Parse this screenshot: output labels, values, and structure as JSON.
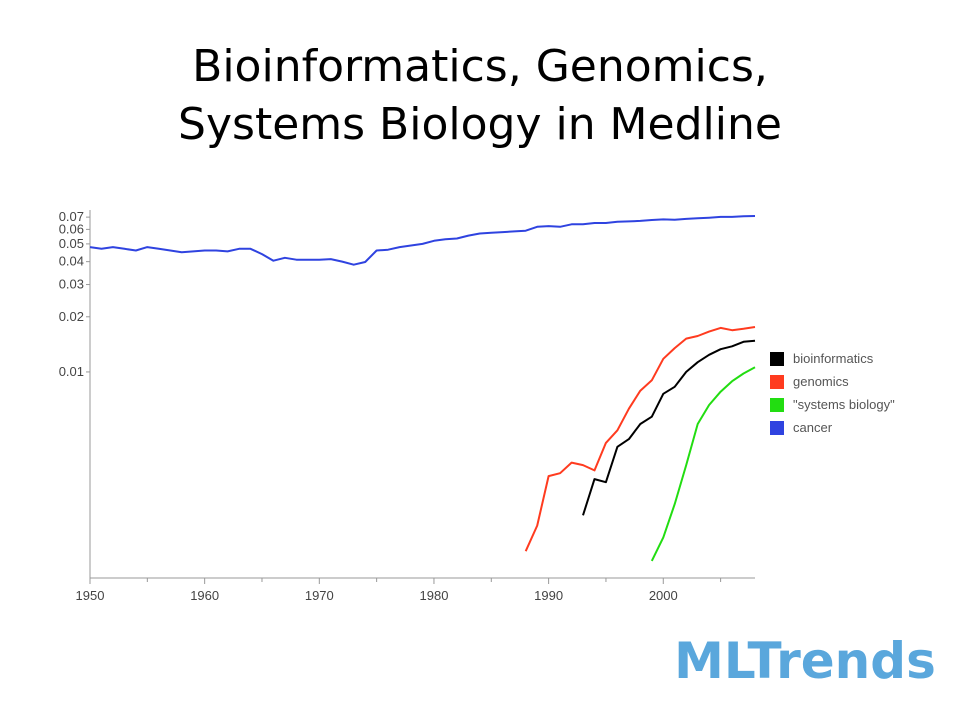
{
  "slide": {
    "title_line1": "Bioinformatics, Genomics,",
    "title_line2": "Systems Biology in Medline"
  },
  "logo": {
    "text": "MLTrends",
    "color": "#5aa7dc"
  },
  "chart_data": {
    "type": "line",
    "title": "",
    "xlabel": "",
    "ylabel": "",
    "xlim": [
      1950,
      2008
    ],
    "y_ticks": [
      0.01,
      0.02,
      0.03,
      0.04,
      0.05,
      0.06,
      0.07
    ],
    "y_tick_labels": [
      "0.01",
      "0.02",
      "0.03",
      "0.04",
      "0.05",
      "0.06",
      "0.07"
    ],
    "x_ticks": [
      1950,
      1960,
      1970,
      1980,
      1990,
      2000
    ],
    "x_tick_labels": [
      "1950",
      "1960",
      "1970",
      "1980",
      "1990",
      "2000"
    ],
    "y_scale": "log-like",
    "grid": false,
    "legend_position": "right",
    "series": [
      {
        "name": "bioinformatics",
        "color": "#000000",
        "points": [
          [
            1993,
            0.00165
          ],
          [
            1994,
            0.0026
          ],
          [
            1995,
            0.0025
          ],
          [
            1996,
            0.0039
          ],
          [
            1997,
            0.0043
          ],
          [
            1998,
            0.0052
          ],
          [
            1999,
            0.0057
          ],
          [
            2000,
            0.0076
          ],
          [
            2001,
            0.0083
          ],
          [
            2002,
            0.01
          ],
          [
            2003,
            0.0113
          ],
          [
            2004,
            0.0124
          ],
          [
            2005,
            0.0133
          ],
          [
            2006,
            0.0138
          ],
          [
            2007,
            0.0146
          ],
          [
            2008,
            0.0148
          ]
        ]
      },
      {
        "name": "genomics",
        "color": "#ff3b1f",
        "points": [
          [
            1988,
            0.00105
          ],
          [
            1989,
            0.00145
          ],
          [
            1990,
            0.0027
          ],
          [
            1991,
            0.0028
          ],
          [
            1992,
            0.0032
          ],
          [
            1993,
            0.0031
          ],
          [
            1994,
            0.0029
          ],
          [
            1995,
            0.0041
          ],
          [
            1996,
            0.0048
          ],
          [
            1997,
            0.0063
          ],
          [
            1998,
            0.0079
          ],
          [
            1999,
            0.009
          ],
          [
            2000,
            0.0118
          ],
          [
            2001,
            0.0135
          ],
          [
            2002,
            0.0152
          ],
          [
            2003,
            0.0157
          ],
          [
            2004,
            0.0166
          ],
          [
            2005,
            0.0174
          ],
          [
            2006,
            0.0169
          ],
          [
            2007,
            0.0172
          ],
          [
            2008,
            0.0176
          ]
        ]
      },
      {
        "name": "\"systems biology\"",
        "color": "#22dd11",
        "points": [
          [
            1999,
            0.00093
          ],
          [
            2000,
            0.00125
          ],
          [
            2001,
            0.0019
          ],
          [
            2002,
            0.0031
          ],
          [
            2003,
            0.0052
          ],
          [
            2004,
            0.0066
          ],
          [
            2005,
            0.0078
          ],
          [
            2006,
            0.0089
          ],
          [
            2007,
            0.0098
          ],
          [
            2008,
            0.0106
          ]
        ]
      },
      {
        "name": "cancer",
        "color": "#2f43e0",
        "points": [
          [
            1950,
            0.048
          ],
          [
            1951,
            0.047
          ],
          [
            1952,
            0.048
          ],
          [
            1953,
            0.047
          ],
          [
            1954,
            0.046
          ],
          [
            1955,
            0.048
          ],
          [
            1956,
            0.047
          ],
          [
            1957,
            0.046
          ],
          [
            1958,
            0.045
          ],
          [
            1959,
            0.0455
          ],
          [
            1960,
            0.046
          ],
          [
            1961,
            0.046
          ],
          [
            1962,
            0.0455
          ],
          [
            1963,
            0.047
          ],
          [
            1964,
            0.047
          ],
          [
            1965,
            0.044
          ],
          [
            1966,
            0.0405
          ],
          [
            1967,
            0.042
          ],
          [
            1968,
            0.041
          ],
          [
            1969,
            0.041
          ],
          [
            1970,
            0.041
          ],
          [
            1971,
            0.0413
          ],
          [
            1972,
            0.04
          ],
          [
            1973,
            0.0385
          ],
          [
            1974,
            0.0398
          ],
          [
            1975,
            0.046
          ],
          [
            1976,
            0.0465
          ],
          [
            1977,
            0.048
          ],
          [
            1978,
            0.049
          ],
          [
            1979,
            0.05
          ],
          [
            1980,
            0.052
          ],
          [
            1981,
            0.053
          ],
          [
            1982,
            0.0535
          ],
          [
            1983,
            0.0555
          ],
          [
            1984,
            0.057
          ],
          [
            1985,
            0.0575
          ],
          [
            1986,
            0.058
          ],
          [
            1987,
            0.0585
          ],
          [
            1988,
            0.059
          ],
          [
            1989,
            0.062
          ],
          [
            1990,
            0.0625
          ],
          [
            1991,
            0.062
          ],
          [
            1992,
            0.064
          ],
          [
            1993,
            0.064
          ],
          [
            1994,
            0.065
          ],
          [
            1995,
            0.065
          ],
          [
            1996,
            0.066
          ],
          [
            1997,
            0.0663
          ],
          [
            1998,
            0.0668
          ],
          [
            1999,
            0.0675
          ],
          [
            2000,
            0.068
          ],
          [
            2001,
            0.0678
          ],
          [
            2002,
            0.0685
          ],
          [
            2003,
            0.069
          ],
          [
            2004,
            0.0695
          ],
          [
            2005,
            0.0702
          ],
          [
            2006,
            0.0702
          ],
          [
            2007,
            0.0708
          ],
          [
            2008,
            0.071
          ]
        ]
      }
    ]
  }
}
